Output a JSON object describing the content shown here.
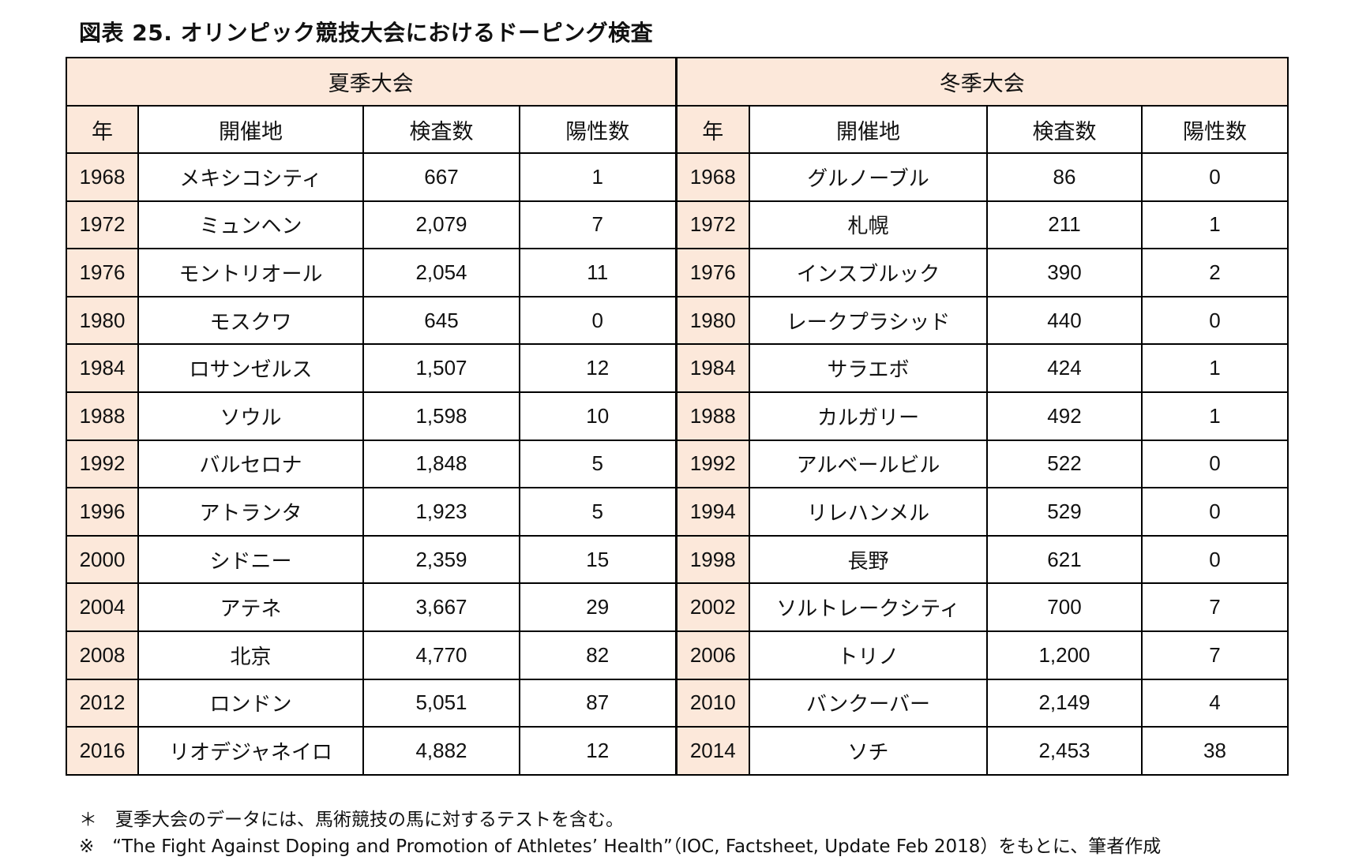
{
  "title": "図表 25.  オリンピック競技大会におけるドーピング検査",
  "table": {
    "summer_label": "夏季大会",
    "winter_label": "冬季大会",
    "columns": [
      "年",
      "開催地",
      "検査数",
      "陽性数"
    ],
    "summer_rows": [
      {
        "year": "1968",
        "city": "メキシコシティ",
        "tests": "667",
        "positives": "1"
      },
      {
        "year": "1972",
        "city": "ミュンヘン",
        "tests": "2,079",
        "positives": "7"
      },
      {
        "year": "1976",
        "city": "モントリオール",
        "tests": "2,054",
        "positives": "11"
      },
      {
        "year": "1980",
        "city": "モスクワ",
        "tests": "645",
        "positives": "0"
      },
      {
        "year": "1984",
        "city": "ロサンゼルス",
        "tests": "1,507",
        "positives": "12"
      },
      {
        "year": "1988",
        "city": "ソウル",
        "tests": "1,598",
        "positives": "10"
      },
      {
        "year": "1992",
        "city": "バルセロナ",
        "tests": "1,848",
        "positives": "5"
      },
      {
        "year": "1996",
        "city": "アトランタ",
        "tests": "1,923",
        "positives": "5"
      },
      {
        "year": "2000",
        "city": "シドニー",
        "tests": "2,359",
        "positives": "15"
      },
      {
        "year": "2004",
        "city": "アテネ",
        "tests": "3,667",
        "positives": "29"
      },
      {
        "year": "2008",
        "city": "北京",
        "tests": "4,770",
        "positives": "82"
      },
      {
        "year": "2012",
        "city": "ロンドン",
        "tests": "5,051",
        "positives": "87"
      },
      {
        "year": "2016",
        "city": "リオデジャネイロ",
        "tests": "4,882",
        "positives": "12"
      }
    ],
    "winter_rows": [
      {
        "year": "1968",
        "city": "グルノーブル",
        "tests": "86",
        "positives": "0"
      },
      {
        "year": "1972",
        "city": "札幌",
        "tests": "211",
        "positives": "1"
      },
      {
        "year": "1976",
        "city": "インスブルック",
        "tests": "390",
        "positives": "2"
      },
      {
        "year": "1980",
        "city": "レークプラシッド",
        "tests": "440",
        "positives": "0"
      },
      {
        "year": "1984",
        "city": "サラエボ",
        "tests": "424",
        "positives": "1"
      },
      {
        "year": "1988",
        "city": "カルガリー",
        "tests": "492",
        "positives": "1"
      },
      {
        "year": "1992",
        "city": "アルベールビル",
        "tests": "522",
        "positives": "0"
      },
      {
        "year": "1994",
        "city": "リレハンメル",
        "tests": "529",
        "positives": "0"
      },
      {
        "year": "1998",
        "city": "長野",
        "tests": "621",
        "positives": "0"
      },
      {
        "year": "2002",
        "city": "ソルトレークシティ",
        "tests": "700",
        "positives": "7"
      },
      {
        "year": "2006",
        "city": "トリノ",
        "tests": "1,200",
        "positives": "7"
      },
      {
        "year": "2010",
        "city": "バンクーバー",
        "tests": "2,149",
        "positives": "4"
      },
      {
        "year": "2014",
        "city": "ソチ",
        "tests": "2,453",
        "positives": "38"
      }
    ]
  },
  "notes": [
    "＊　夏季大会のデータには、馬術競技の馬に対するテストを含む。",
    "※　“The Fight Against Doping and Promotion of Athletes’ Health”（IOC, Factsheet, Update Feb 2018）をもとに、筆者作成"
  ],
  "colors": {
    "header_fill": "#fce8da",
    "border": "#000000"
  }
}
